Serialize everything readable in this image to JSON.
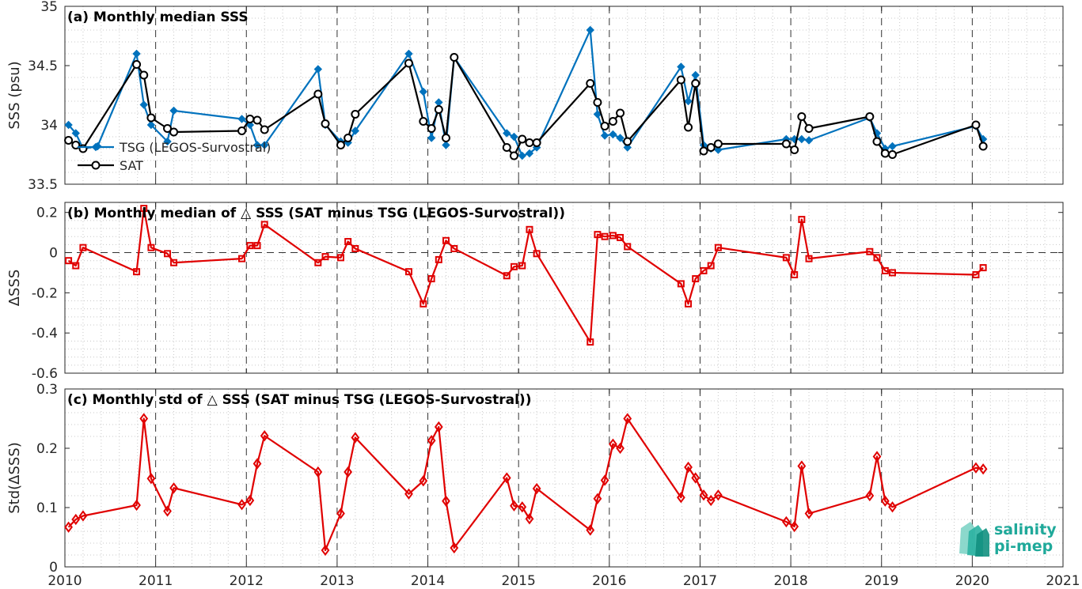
{
  "logo": {
    "line1": "salinity",
    "line2": "pi-mep"
  },
  "colors": {
    "tsg": "#0072bd",
    "sat": "#000000",
    "delta": "#e00000",
    "logo": "#1fa99a"
  },
  "x_axis": {
    "range": [
      2010,
      2021
    ],
    "ticks": [
      2010,
      2011,
      2012,
      2013,
      2014,
      2015,
      2016,
      2017,
      2018,
      2019,
      2020,
      2021
    ],
    "tick_labels": [
      "2010",
      "2011",
      "2012",
      "2013",
      "2014",
      "2015",
      "2016",
      "2017",
      "2018",
      "2019",
      "2020",
      "2021"
    ]
  },
  "chart_data": [
    {
      "type": "line",
      "title": "(a) Monthly median SSS",
      "ylabel": "SSS (psu)",
      "ylim": [
        33.5,
        35
      ],
      "yticks": [
        33.5,
        34,
        34.5,
        35
      ],
      "ytick_labels": [
        "33.5",
        "34",
        "34.5",
        "35"
      ],
      "legend": {
        "position": "lower-left",
        "entries": [
          "TSG (LEGOS-Survostral)",
          "SAT"
        ]
      },
      "series": [
        {
          "name": "TSG (LEGOS-Survostral)",
          "marker": "diamond",
          "x": [
            2010.04,
            2010.12,
            2010.2,
            2010.36,
            2010.79,
            2010.87,
            2010.95,
            2011.13,
            2011.2,
            2011.95,
            2012.04,
            2012.12,
            2012.2,
            2012.79,
            2012.87,
            2013.04,
            2013.12,
            2013.2,
            2013.79,
            2013.95,
            2014.04,
            2014.12,
            2014.2,
            2014.29,
            2014.87,
            2014.95,
            2015.04,
            2015.12,
            2015.2,
            2015.79,
            2015.87,
            2015.95,
            2016.04,
            2016.12,
            2016.2,
            2016.79,
            2016.87,
            2016.95,
            2017.04,
            2017.12,
            2017.2,
            2017.95,
            2018.04,
            2018.12,
            2018.2,
            2018.87,
            2018.95,
            2019.04,
            2019.12,
            2020.04,
            2020.12
          ],
          "values": [
            34,
            33.93,
            33.8,
            33.82,
            34.6,
            34.17,
            34,
            33.86,
            34.12,
            34.05,
            34,
            33.83,
            33.83,
            34.47,
            34,
            33.86,
            33.85,
            33.95,
            34.6,
            34.28,
            33.89,
            34.19,
            33.83,
            34.57,
            33.93,
            33.9,
            33.74,
            33.76,
            33.81,
            34.8,
            34.09,
            33.91,
            33.92,
            33.89,
            33.81,
            34.49,
            34.2,
            34.42,
            33.83,
            33.8,
            33.79,
            33.88,
            33.88,
            33.88,
            33.87,
            34.06,
            33.93,
            33.8,
            33.82,
            33.99,
            33.88
          ]
        },
        {
          "name": "SAT",
          "marker": "circle",
          "x": [
            2010.04,
            2010.12,
            2010.2,
            2010.79,
            2010.87,
            2010.95,
            2011.13,
            2011.2,
            2011.95,
            2012.04,
            2012.12,
            2012.2,
            2012.79,
            2012.87,
            2013.04,
            2013.12,
            2013.2,
            2013.79,
            2013.95,
            2014.04,
            2014.12,
            2014.2,
            2014.29,
            2014.87,
            2014.95,
            2015.04,
            2015.12,
            2015.2,
            2015.79,
            2015.87,
            2015.95,
            2016.04,
            2016.12,
            2016.2,
            2016.79,
            2016.87,
            2016.95,
            2017.04,
            2017.12,
            2017.2,
            2017.95,
            2018.04,
            2018.12,
            2018.2,
            2018.87,
            2018.95,
            2019.04,
            2019.12,
            2020.04,
            2020.12
          ],
          "values": [
            33.87,
            33.83,
            33.8,
            34.51,
            34.42,
            34.06,
            33.97,
            33.94,
            33.95,
            34.05,
            34.04,
            33.96,
            34.26,
            34.01,
            33.83,
            33.89,
            34.09,
            34.52,
            34.03,
            33.97,
            34.13,
            33.89,
            34.57,
            33.81,
            33.74,
            33.88,
            33.85,
            33.85,
            34.35,
            34.19,
            33.99,
            34.03,
            34.1,
            33.86,
            34.38,
            33.98,
            34.35,
            33.78,
            33.81,
            33.84,
            33.84,
            33.79,
            34.07,
            33.97,
            34.07,
            33.86,
            33.76,
            33.75,
            34,
            33.82
          ]
        }
      ]
    },
    {
      "type": "line",
      "title": "(b) Monthly median of △ SSS (SAT minus TSG (LEGOS-Survostral))",
      "ylabel": "ΔSSS",
      "ylim": [
        -0.6,
        0.25
      ],
      "yticks": [
        -0.6,
        -0.4,
        -0.2,
        0,
        0.2
      ],
      "ytick_labels": [
        "-0.6",
        "-0.4",
        "-0.2",
        "0",
        "0.2"
      ],
      "reference_line": 0,
      "series": [
        {
          "name": "",
          "marker": "square",
          "x": [
            2010.04,
            2010.12,
            2010.2,
            2010.79,
            2010.87,
            2010.95,
            2011.13,
            2011.2,
            2011.95,
            2012.04,
            2012.12,
            2012.2,
            2012.79,
            2012.87,
            2013.04,
            2013.12,
            2013.2,
            2013.79,
            2013.95,
            2014.04,
            2014.12,
            2014.2,
            2014.29,
            2014.87,
            2014.95,
            2015.04,
            2015.12,
            2015.2,
            2015.79,
            2015.87,
            2015.95,
            2016.04,
            2016.12,
            2016.2,
            2016.79,
            2016.87,
            2016.95,
            2017.04,
            2017.12,
            2017.2,
            2017.95,
            2018.04,
            2018.12,
            2018.2,
            2018.87,
            2018.95,
            2019.04,
            2019.12,
            2020.04,
            2020.12
          ],
          "values": [
            -0.04,
            -0.065,
            0.025,
            -0.095,
            0.22,
            0.025,
            -0.005,
            -0.05,
            -0.03,
            0.035,
            0.035,
            0.14,
            -0.05,
            -0.02,
            -0.025,
            0.055,
            0.02,
            -0.095,
            -0.255,
            -0.13,
            -0.035,
            0.06,
            0.02,
            -0.115,
            -0.07,
            -0.065,
            0.115,
            -0.005,
            -0.445,
            0.09,
            0.08,
            0.085,
            0.075,
            0.03,
            -0.155,
            -0.255,
            -0.13,
            -0.09,
            -0.065,
            0.025,
            -0.025,
            -0.11,
            0.165,
            -0.03,
            0.005,
            -0.025,
            -0.09,
            -0.1,
            -0.11,
            -0.075
          ]
        }
      ]
    },
    {
      "type": "line",
      "title": "(c) Monthly std of △ SSS (SAT minus TSG (LEGOS-Survostral))",
      "ylabel": "Std(ΔSSS)",
      "ylim": [
        0,
        0.3
      ],
      "yticks": [
        0,
        0.1,
        0.2,
        0.3
      ],
      "ytick_labels": [
        "0",
        "0.1",
        "0.2",
        "0.3"
      ],
      "series": [
        {
          "name": "",
          "marker": "diamond",
          "x": [
            2010.04,
            2010.12,
            2010.2,
            2010.79,
            2010.87,
            2010.95,
            2011.13,
            2011.2,
            2011.95,
            2012.04,
            2012.12,
            2012.2,
            2012.79,
            2012.87,
            2013.04,
            2013.12,
            2013.2,
            2013.79,
            2013.95,
            2014.04,
            2014.12,
            2014.2,
            2014.29,
            2014.87,
            2014.95,
            2015.04,
            2015.12,
            2015.2,
            2015.79,
            2015.87,
            2015.95,
            2016.04,
            2016.12,
            2016.2,
            2016.79,
            2016.87,
            2016.95,
            2017.04,
            2017.12,
            2017.2,
            2017.95,
            2018.04,
            2018.12,
            2018.2,
            2018.87,
            2018.95,
            2019.04,
            2019.12,
            2020.04,
            2020.12
          ],
          "values": [
            0.067,
            0.08,
            0.086,
            0.104,
            0.25,
            0.149,
            0.094,
            0.133,
            0.105,
            0.112,
            0.174,
            0.221,
            0.16,
            0.028,
            0.09,
            0.16,
            0.218,
            0.123,
            0.145,
            0.213,
            0.236,
            0.111,
            0.032,
            0.15,
            0.103,
            0.101,
            0.081,
            0.132,
            0.062,
            0.115,
            0.146,
            0.207,
            0.2,
            0.25,
            0.117,
            0.168,
            0.15,
            0.121,
            0.112,
            0.121,
            0.076,
            0.068,
            0.17,
            0.09,
            0.12,
            0.186,
            0.111,
            0.101,
            0.167,
            0.165
          ]
        }
      ]
    }
  ]
}
